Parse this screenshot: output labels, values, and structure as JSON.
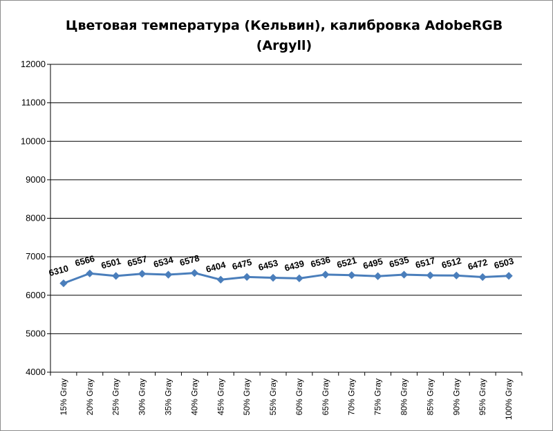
{
  "chart_data": {
    "type": "line",
    "title": "Цветовая температура (Кельвин), калибровка AdobeRGB (Argyll)",
    "categories": [
      "15% Gray",
      "20% Gray",
      "25% Gray",
      "30% Gray",
      "35% Gray",
      "40% Gray",
      "45% Gray",
      "50% Gray",
      "55% Gray",
      "60% Gray",
      "65% Gray",
      "70% Gray",
      "75% Gray",
      "80% Gray",
      "85% Gray",
      "90% Gray",
      "95% Gray",
      "100% Gray"
    ],
    "series": [
      {
        "values": [
          6310,
          6566,
          6501,
          6557,
          6534,
          6578,
          6404,
          6475,
          6453,
          6439,
          6536,
          6521,
          6495,
          6535,
          6517,
          6512,
          6472,
          6503
        ],
        "color": "#4a7ebb"
      }
    ],
    "ylim": [
      4000,
      12000
    ],
    "yticks": [
      4000,
      5000,
      6000,
      7000,
      8000,
      9000,
      10000,
      11000,
      12000
    ],
    "grid": "horizontal",
    "legend": "none",
    "data_labels": true
  }
}
